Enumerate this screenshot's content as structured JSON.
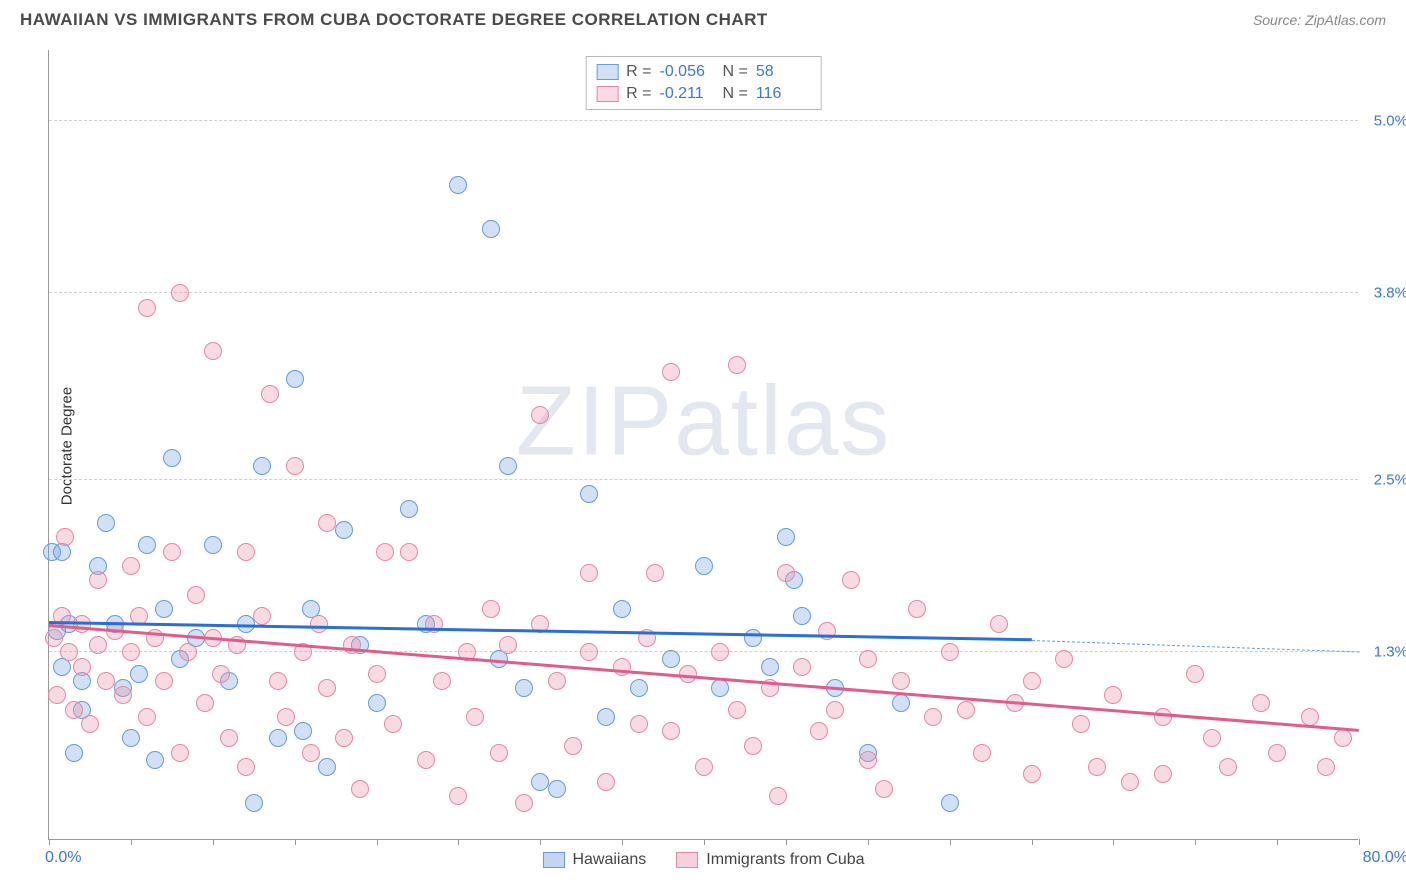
{
  "header": {
    "title": "HAWAIIAN VS IMMIGRANTS FROM CUBA DOCTORATE DEGREE CORRELATION CHART",
    "source": "Source: ZipAtlas.com"
  },
  "chart": {
    "type": "scatter",
    "ylabel": "Doctorate Degree",
    "watermark": "ZIPatlas",
    "background_color": "#ffffff",
    "grid_color": "#d0d0d0",
    "axis_color": "#999999",
    "xlim": [
      0,
      80
    ],
    "ylim": [
      0,
      5.5
    ],
    "x_start_label": "0.0%",
    "x_end_label": "80.0%",
    "xtick_positions": [
      0,
      5,
      10,
      15,
      20,
      25,
      30,
      35,
      40,
      45,
      50,
      55,
      60,
      65,
      70,
      75,
      80
    ],
    "ytick_labels": [
      {
        "value": 1.3,
        "label": "1.3%"
      },
      {
        "value": 2.5,
        "label": "2.5%"
      },
      {
        "value": 3.8,
        "label": "3.8%"
      },
      {
        "value": 5.0,
        "label": "5.0%"
      }
    ],
    "marker_radius": 9,
    "marker_stroke_width": 1.5,
    "series": [
      {
        "name": "Hawaiians",
        "fill_color": "rgba(120, 165, 225, 0.35)",
        "stroke_color": "#6a9bd8",
        "trend_color": "#2a6fd6",
        "R": "-0.056",
        "N": "58",
        "trend": {
          "x1": 0,
          "y1": 1.5,
          "x2": 60,
          "y2": 1.38,
          "dash_to_x": 80,
          "dash_y": 1.3
        },
        "points": [
          [
            0.2,
            2.0
          ],
          [
            0.5,
            1.45
          ],
          [
            0.8,
            1.2
          ],
          [
            0.8,
            2.0
          ],
          [
            1.2,
            1.5
          ],
          [
            1.5,
            0.6
          ],
          [
            2,
            1.1
          ],
          [
            2,
            0.9
          ],
          [
            3,
            1.9
          ],
          [
            3.5,
            2.2
          ],
          [
            4,
            1.5
          ],
          [
            4.5,
            1.05
          ],
          [
            5,
            0.7
          ],
          [
            5.5,
            1.15
          ],
          [
            6,
            2.05
          ],
          [
            6.5,
            0.55
          ],
          [
            7,
            1.6
          ],
          [
            7.5,
            2.65
          ],
          [
            8,
            1.25
          ],
          [
            9,
            1.4
          ],
          [
            10,
            2.05
          ],
          [
            11,
            1.1
          ],
          [
            12,
            1.5
          ],
          [
            12.5,
            0.25
          ],
          [
            13,
            2.6
          ],
          [
            14,
            0.7
          ],
          [
            15,
            3.2
          ],
          [
            15.5,
            0.75
          ],
          [
            16,
            1.6
          ],
          [
            17,
            0.5
          ],
          [
            18,
            2.15
          ],
          [
            19,
            1.35
          ],
          [
            20,
            0.95
          ],
          [
            22,
            2.3
          ],
          [
            23,
            1.5
          ],
          [
            25,
            4.55
          ],
          [
            27,
            4.25
          ],
          [
            27.5,
            1.25
          ],
          [
            28,
            2.6
          ],
          [
            29,
            1.05
          ],
          [
            30,
            0.4
          ],
          [
            31,
            0.35
          ],
          [
            33,
            2.4
          ],
          [
            34,
            0.85
          ],
          [
            35,
            1.6
          ],
          [
            36,
            1.05
          ],
          [
            38,
            1.25
          ],
          [
            40,
            1.9
          ],
          [
            41,
            1.05
          ],
          [
            43,
            1.4
          ],
          [
            45,
            2.1
          ],
          [
            45.5,
            1.8
          ],
          [
            46,
            1.55
          ],
          [
            48,
            1.05
          ],
          [
            50,
            0.6
          ],
          [
            52,
            0.95
          ],
          [
            55,
            0.25
          ],
          [
            44,
            1.2
          ]
        ]
      },
      {
        "name": "Immigrants from Cuba",
        "fill_color": "rgba(235, 150, 175, 0.35)",
        "stroke_color": "#e28aa5",
        "trend_color": "#e05c8a",
        "R": "-0.211",
        "N": "116",
        "trend": {
          "x1": 0,
          "y1": 1.48,
          "x2": 80,
          "y2": 0.75
        },
        "points": [
          [
            0.3,
            1.4
          ],
          [
            0.5,
            1.0
          ],
          [
            0.8,
            1.55
          ],
          [
            1,
            2.1
          ],
          [
            1.2,
            1.3
          ],
          [
            1.5,
            0.9
          ],
          [
            2,
            1.2
          ],
          [
            2,
            1.5
          ],
          [
            2.5,
            0.8
          ],
          [
            3,
            1.35
          ],
          [
            3,
            1.8
          ],
          [
            3.5,
            1.1
          ],
          [
            4,
            1.45
          ],
          [
            4.5,
            1.0
          ],
          [
            5,
            1.9
          ],
          [
            5,
            1.3
          ],
          [
            5.5,
            1.55
          ],
          [
            6,
            0.85
          ],
          [
            6,
            3.7
          ],
          [
            6.5,
            1.4
          ],
          [
            7,
            1.1
          ],
          [
            7.5,
            2.0
          ],
          [
            8,
            0.6
          ],
          [
            8,
            3.8
          ],
          [
            8.5,
            1.3
          ],
          [
            9,
            1.7
          ],
          [
            9.5,
            0.95
          ],
          [
            10,
            3.4
          ],
          [
            10,
            1.4
          ],
          [
            10.5,
            1.15
          ],
          [
            11,
            0.7
          ],
          [
            11.5,
            1.35
          ],
          [
            12,
            2.0
          ],
          [
            12,
            0.5
          ],
          [
            13,
            1.55
          ],
          [
            13.5,
            3.1
          ],
          [
            14,
            1.1
          ],
          [
            14.5,
            0.85
          ],
          [
            15,
            2.6
          ],
          [
            15.5,
            1.3
          ],
          [
            16,
            0.6
          ],
          [
            16.5,
            1.5
          ],
          [
            17,
            2.2
          ],
          [
            17,
            1.05
          ],
          [
            18,
            0.7
          ],
          [
            18.5,
            1.35
          ],
          [
            19,
            0.35
          ],
          [
            20,
            1.15
          ],
          [
            20.5,
            2.0
          ],
          [
            21,
            0.8
          ],
          [
            22,
            2.0
          ],
          [
            23,
            0.55
          ],
          [
            23.5,
            1.5
          ],
          [
            24,
            1.1
          ],
          [
            25,
            0.3
          ],
          [
            25.5,
            1.3
          ],
          [
            26,
            0.85
          ],
          [
            27,
            1.6
          ],
          [
            27.5,
            0.6
          ],
          [
            28,
            1.35
          ],
          [
            29,
            0.25
          ],
          [
            30,
            1.5
          ],
          [
            30,
            2.95
          ],
          [
            31,
            1.1
          ],
          [
            32,
            0.65
          ],
          [
            33,
            1.3
          ],
          [
            33,
            1.85
          ],
          [
            34,
            0.4
          ],
          [
            35,
            1.2
          ],
          [
            36,
            0.8
          ],
          [
            36.5,
            1.4
          ],
          [
            37,
            1.85
          ],
          [
            38,
            0.75
          ],
          [
            38,
            3.25
          ],
          [
            39,
            1.15
          ],
          [
            40,
            0.5
          ],
          [
            41,
            1.3
          ],
          [
            42,
            3.3
          ],
          [
            42,
            0.9
          ],
          [
            43,
            0.65
          ],
          [
            44,
            1.05
          ],
          [
            44.5,
            0.3
          ],
          [
            45,
            1.85
          ],
          [
            46,
            1.2
          ],
          [
            47,
            0.75
          ],
          [
            47.5,
            1.45
          ],
          [
            48,
            0.9
          ],
          [
            49,
            1.8
          ],
          [
            50,
            0.55
          ],
          [
            50,
            1.25
          ],
          [
            51,
            0.35
          ],
          [
            52,
            1.1
          ],
          [
            53,
            1.6
          ],
          [
            54,
            0.85
          ],
          [
            55,
            1.3
          ],
          [
            56,
            0.9
          ],
          [
            57,
            0.6
          ],
          [
            58,
            1.5
          ],
          [
            59,
            0.95
          ],
          [
            60,
            1.1
          ],
          [
            60,
            0.45
          ],
          [
            62,
            1.25
          ],
          [
            63,
            0.8
          ],
          [
            64,
            0.5
          ],
          [
            65,
            1.0
          ],
          [
            66,
            0.4
          ],
          [
            68,
            0.85
          ],
          [
            68,
            0.45
          ],
          [
            70,
            1.15
          ],
          [
            71,
            0.7
          ],
          [
            72,
            0.5
          ],
          [
            74,
            0.95
          ],
          [
            75,
            0.6
          ],
          [
            77,
            0.85
          ],
          [
            78,
            0.5
          ],
          [
            79,
            0.7
          ]
        ]
      }
    ],
    "bottom_legend": [
      {
        "label": "Hawaiians",
        "swatch_fill": "rgba(120, 165, 225, 0.45)",
        "swatch_border": "#6a9bd8"
      },
      {
        "label": "Immigrants from Cuba",
        "swatch_fill": "rgba(235, 150, 175, 0.45)",
        "swatch_border": "#e28aa5"
      }
    ]
  }
}
